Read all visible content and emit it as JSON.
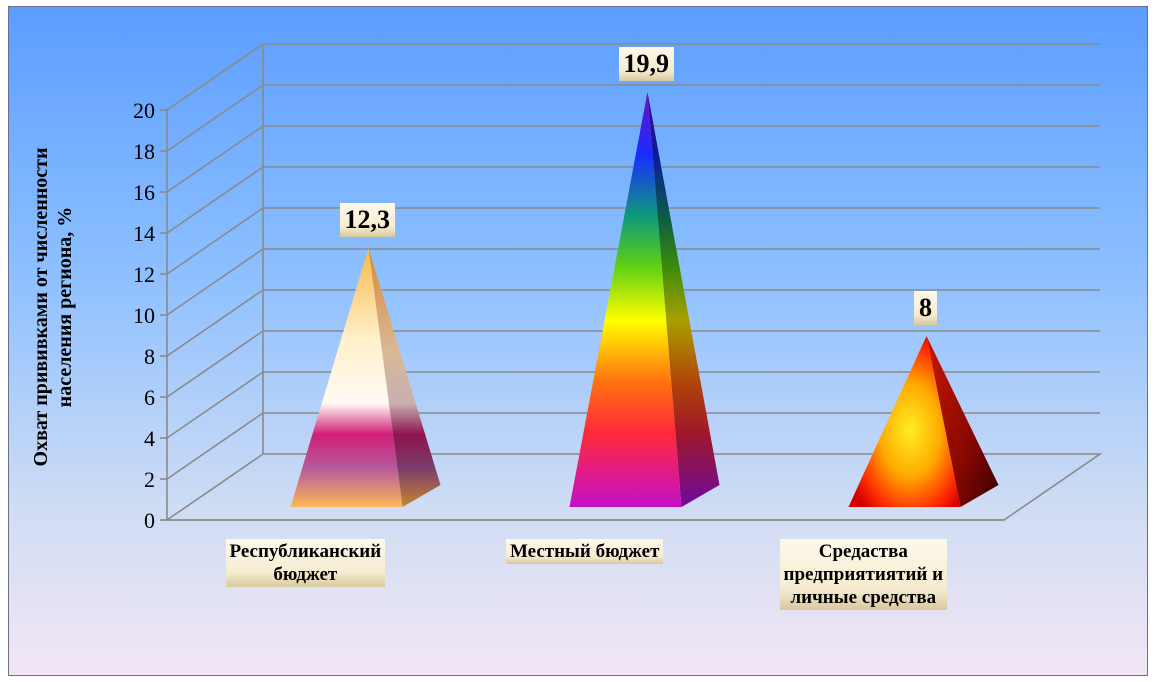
{
  "chart_data": {
    "type": "bar",
    "subtype": "3d-pyramid",
    "categories": [
      "Республиканский бюджет",
      "Местный бюджет",
      "Средаства предприятиятий и личные средства"
    ],
    "category_lines": [
      [
        "Республиканский",
        "бюджет"
      ],
      [
        "Местный бюджет"
      ],
      [
        "Средаства",
        "предприятиятий и",
        "личные средства"
      ]
    ],
    "values": [
      12.3,
      19.9,
      8
    ],
    "data_labels": [
      "12,3",
      "19,9",
      "8"
    ],
    "ylabel_lines": [
      "Охват прививками от численности",
      "населения  региона, %"
    ],
    "ylim": [
      0,
      20
    ],
    "yticks": [
      0,
      2,
      4,
      6,
      8,
      10,
      12,
      14,
      16,
      18,
      20
    ],
    "grid": true,
    "legend": "none"
  }
}
